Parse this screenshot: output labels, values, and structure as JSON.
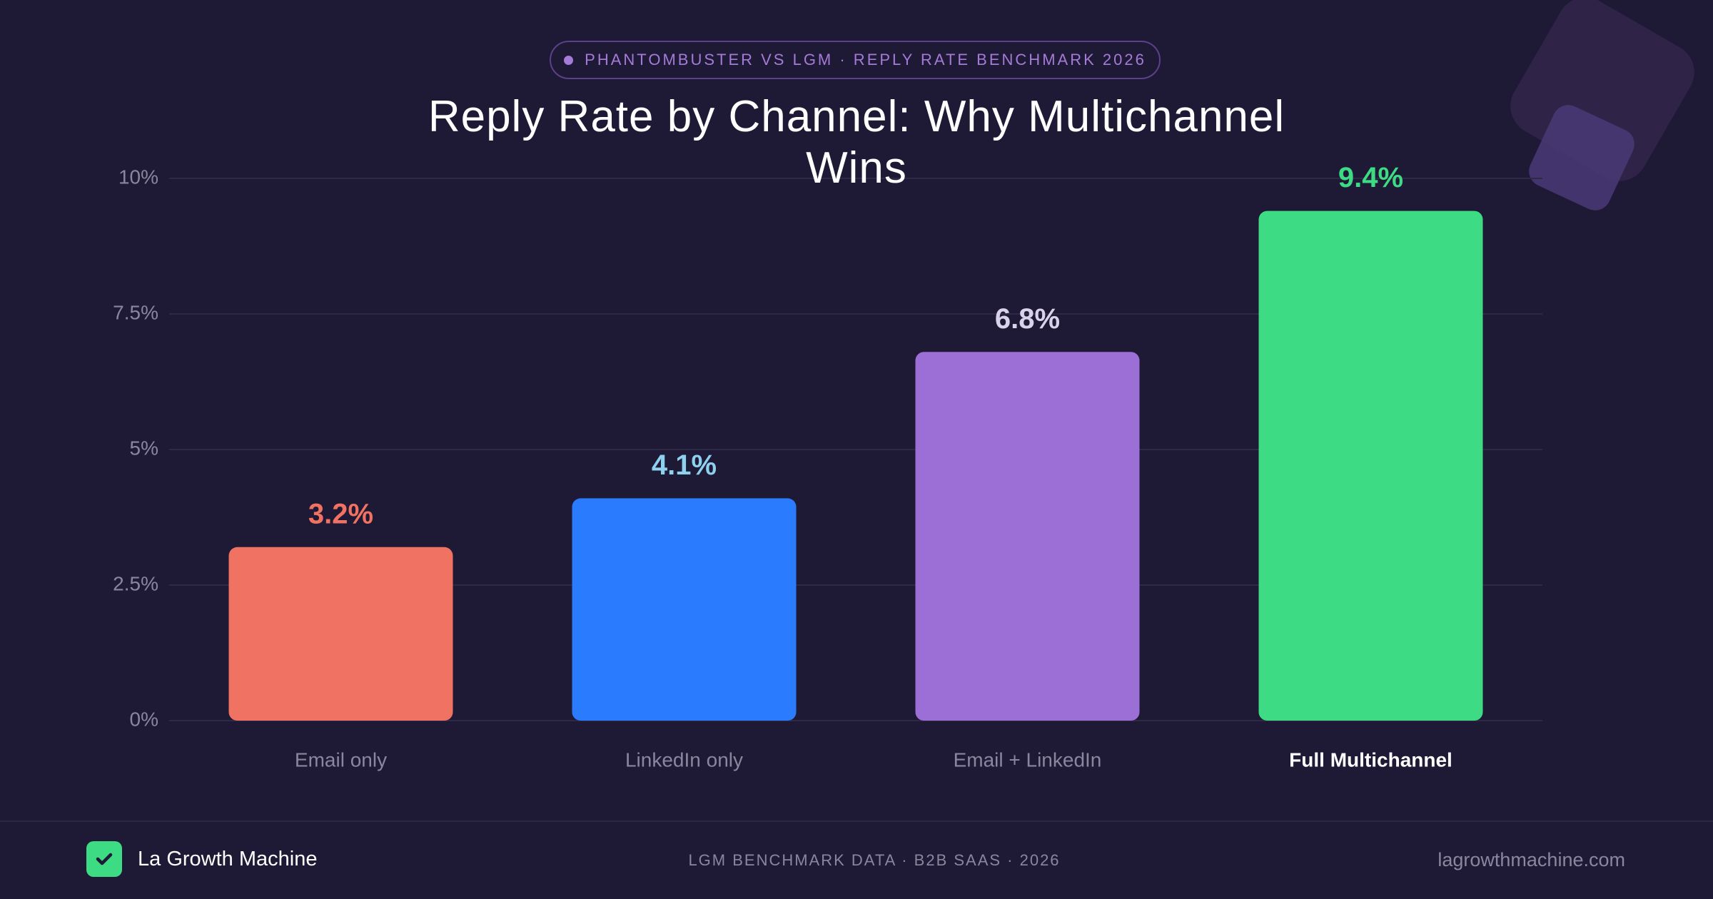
{
  "badge": "PHANTOMBUSTER VS LGM · REPLY RATE BENCHMARK 2026",
  "chart_data": {
    "type": "bar",
    "title": "Reply Rate by Channel: Why Multichannel Wins",
    "categories": [
      "Email only",
      "LinkedIn only",
      "Email + LinkedIn",
      "Full Multichannel"
    ],
    "values": [
      3.2,
      4.1,
      6.8,
      9.4
    ],
    "value_labels": [
      "3.2%",
      "4.1%",
      "6.8%",
      "9.4%"
    ],
    "colors": [
      "#ef7262",
      "#2b7bff",
      "#9c6fd6",
      "#3ddc84"
    ],
    "label_colors": [
      "#ef7262",
      "#8ed0ee",
      "#d8d2ea",
      "#3ddc84"
    ],
    "ylim": [
      0,
      10
    ],
    "yticks": [
      {
        "value": 0,
        "label": "0%"
      },
      {
        "value": 2.5,
        "label": "2.5%"
      },
      {
        "value": 5,
        "label": "5%"
      },
      {
        "value": 7.5,
        "label": "7.5%"
      },
      {
        "value": 10,
        "label": "10%"
      }
    ],
    "grid": true
  },
  "footer": {
    "brand": "La Growth Machine",
    "source": "LGM BENCHMARK DATA · B2B SAAS · 2026",
    "url": "lagrowthmachine.com"
  }
}
